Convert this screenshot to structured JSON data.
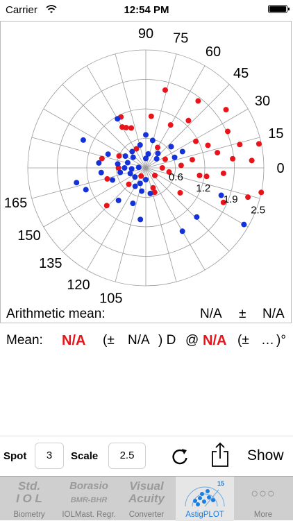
{
  "status": {
    "carrier": "Carrier",
    "time": "12:54 PM"
  },
  "chart_data": {
    "type": "scatter",
    "coordinate_system": "polar",
    "angle_unit": "degrees",
    "angle_labels": [
      "0",
      "15",
      "30",
      "45",
      "60",
      "75",
      "90",
      "105",
      "120",
      "135",
      "150",
      "165"
    ],
    "radial_scale_max": 2.5,
    "radial_labels": [
      "0.6",
      "1.2",
      "1.9",
      "2.5"
    ],
    "series": [
      {
        "color": "#e8141b",
        "points": [
          [
            2.1,
            18
          ],
          [
            1.8,
            26
          ],
          [
            1.7,
            38
          ],
          [
            1.35,
            24
          ],
          [
            1.1,
            42
          ],
          [
            1.2,
            58
          ],
          [
            0.95,
            58
          ],
          [
            0.9,
            55
          ],
          [
            1.2,
            14
          ],
          [
            1.4,
            10
          ],
          [
            1.9,
            12
          ],
          [
            2.05,
            7
          ],
          [
            2.45,
            6
          ],
          [
            2.25,
            2
          ],
          [
            1.55,
            6
          ],
          [
            1.85,
            3
          ],
          [
            1.65,
            358
          ],
          [
            1.0,
            5
          ],
          [
            1.15,
            356
          ],
          [
            0.45,
            12
          ],
          [
            0.5,
            355
          ],
          [
            0.75,
            2
          ],
          [
            0.4,
            25
          ],
          [
            0.5,
            30
          ],
          [
            1.05,
            30
          ],
          [
            0.45,
            58
          ],
          [
            0.62,
            78
          ],
          [
            0.58,
            90
          ],
          [
            0.95,
            84
          ],
          [
            0.85,
            98
          ],
          [
            1.15,
            112
          ],
          [
            0.5,
            112
          ],
          [
            0.2,
            120
          ],
          [
            0.45,
            145
          ],
          [
            0.9,
            162
          ],
          [
            1.8,
            168
          ],
          [
            2.25,
            172
          ],
          [
            2.5,
            174
          ],
          [
            1.3,
            176
          ],
          [
            0.25,
            340
          ],
          [
            0.35,
            180
          ],
          [
            0.55,
            325
          ],
          [
            0.7,
            200
          ],
          [
            1.0,
            240
          ]
        ]
      },
      {
        "color": "#1432d8",
        "points": [
          [
            1.5,
            96
          ],
          [
            1.35,
            100
          ],
          [
            1.45,
            78
          ],
          [
            0.95,
            93
          ],
          [
            1.0,
            87
          ],
          [
            0.85,
            80
          ],
          [
            0.75,
            100
          ],
          [
            0.55,
            95
          ],
          [
            0.45,
            90
          ],
          [
            0.6,
            86
          ],
          [
            0.4,
            82
          ],
          [
            0.35,
            100
          ],
          [
            0.3,
            110
          ],
          [
            0.25,
            135
          ],
          [
            0.35,
            125
          ],
          [
            0.45,
            120
          ],
          [
            0.15,
            88
          ],
          [
            0.3,
            92
          ],
          [
            0.5,
            130
          ],
          [
            0.55,
            140
          ],
          [
            0.45,
            65
          ],
          [
            0.2,
            45
          ],
          [
            0.3,
            40
          ],
          [
            0.4,
            25
          ],
          [
            0.6,
            38
          ],
          [
            0.7,
            45
          ],
          [
            0.35,
            70
          ],
          [
            0.5,
            75
          ],
          [
            0.85,
            12
          ],
          [
            2.4,
            165
          ],
          [
            1.55,
            150
          ],
          [
            0.8,
            125
          ],
          [
            0.5,
            52
          ],
          [
            0.3,
            20
          ],
          [
            0.7,
            20
          ],
          [
            0.9,
            115
          ],
          [
            1.1,
            132
          ],
          [
            1.5,
            158
          ],
          [
            0.65,
            10
          ],
          [
            1.7,
            170
          ],
          [
            1.2,
            60
          ]
        ]
      }
    ]
  },
  "arithmetic": {
    "label": "Arithmetic mean:",
    "value1": "N/A",
    "pm": "±",
    "value2": "N/A"
  },
  "mean": {
    "label": "Mean:",
    "value": "N/A",
    "open": "(±",
    "sd": "N/A",
    "close_d": ") D",
    "at": "@",
    "axis": "N/A",
    "open2": "(±",
    "ellipsis": "…",
    "close_deg": ")°"
  },
  "controls": {
    "spot_label": "Spot",
    "spot_value": "3",
    "scale_label": "Scale",
    "scale_value": "2.5",
    "show_label": "Show",
    "refresh_icon": "refresh-icon",
    "share_icon": "share-icon"
  },
  "tabs": [
    {
      "line1": "Std.",
      "line2": "I O L",
      "caption": "Biometry",
      "active": false
    },
    {
      "line1": "Borasio",
      "line2": "BMR-BHR",
      "caption": "IOLMast. Regr.",
      "active": false
    },
    {
      "line1": "Visual",
      "line2": "Acuity",
      "caption": "Converter",
      "active": false
    },
    {
      "line1": "",
      "line2": "",
      "badge": "15",
      "caption": "AstigPLOT",
      "active": true
    },
    {
      "line1": "",
      "line2": "",
      "caption": "More",
      "active": false
    }
  ]
}
